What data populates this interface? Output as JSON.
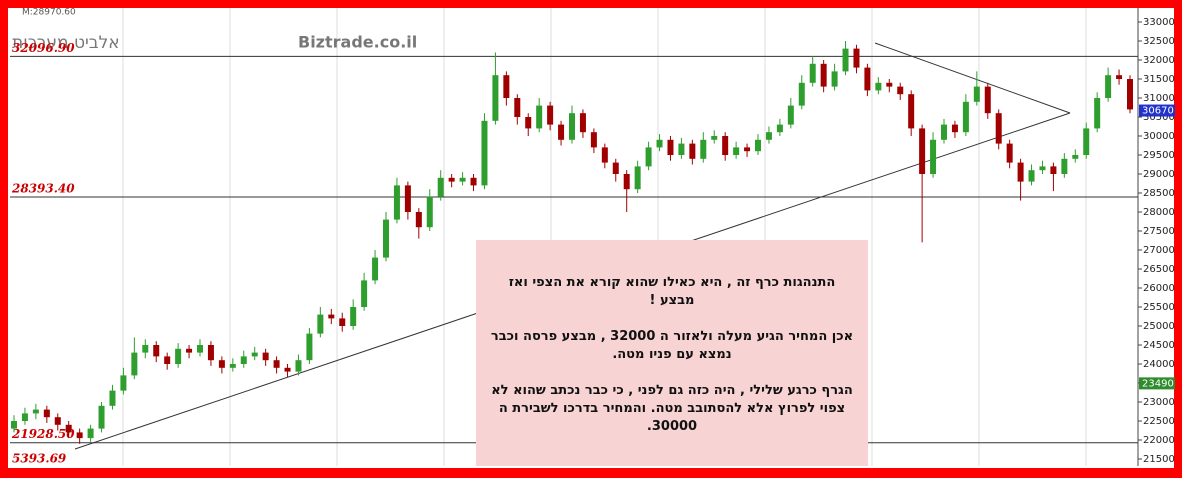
{
  "chart_data": {
    "type": "candlestick",
    "header_note": "M:28970.60",
    "title": "אלביט מערכות",
    "subtitle": "Biztrade.co.il",
    "up_color": "#2e9e2e",
    "down_color": "#a00000",
    "ylim": [
      21300,
      33300
    ],
    "yticks": [
      21500,
      22000,
      22500,
      23000,
      23500,
      24000,
      24500,
      25000,
      25500,
      26000,
      26500,
      27000,
      27500,
      28000,
      28500,
      29000,
      29500,
      30000,
      30500,
      31000,
      31500,
      32000,
      32500,
      33000
    ],
    "open": [
      22300,
      22500,
      22700,
      22800,
      22600,
      22400,
      22200,
      22050,
      22300,
      22900,
      23300,
      23700,
      24300,
      24500,
      24200,
      24000,
      24400,
      24300,
      24500,
      24100,
      23900,
      24000,
      24200,
      24300,
      24100,
      23900,
      23800,
      24100,
      24800,
      25300,
      25200,
      25000,
      25500,
      26200,
      26800,
      27800,
      28700,
      28000,
      27600,
      28400,
      28900,
      28800,
      28900,
      28700,
      30400,
      31600,
      31000,
      30500,
      30200,
      30800,
      30300,
      29900,
      30600,
      30100,
      29700,
      29300,
      29000,
      28600,
      29200,
      29700,
      29900,
      29500,
      29800,
      29400,
      29900,
      30000,
      29500,
      29700,
      29600,
      29900,
      30100,
      30300,
      30800,
      31400,
      31900,
      31300,
      31700,
      32300,
      31800,
      31200,
      31400,
      31300,
      31100,
      30200,
      29000,
      29900,
      30300,
      30100,
      30900,
      31300,
      30600,
      29800,
      29300,
      28800,
      29100,
      29200,
      29000,
      29400,
      29500,
      30200,
      31000,
      31600,
      31500
    ],
    "high": [
      22650,
      22850,
      22950,
      22900,
      22700,
      22500,
      22300,
      22400,
      23000,
      23450,
      23900,
      24700,
      24650,
      24600,
      24300,
      24550,
      24500,
      24650,
      24600,
      24200,
      24150,
      24350,
      24450,
      24400,
      24200,
      24000,
      24250,
      24950,
      25500,
      25450,
      25350,
      25700,
      26400,
      27000,
      28000,
      28900,
      28800,
      28100,
      28600,
      29100,
      29000,
      29050,
      29000,
      30600,
      32200,
      31700,
      31100,
      30600,
      31000,
      30900,
      30400,
      30800,
      30700,
      30200,
      29800,
      29400,
      29100,
      29350,
      29850,
      30050,
      30000,
      29950,
      29900,
      30100,
      30150,
      30100,
      29850,
      29800,
      30050,
      30250,
      30450,
      31000,
      31600,
      32100,
      32000,
      31900,
      32500,
      32400,
      31900,
      31550,
      31500,
      31400,
      31200,
      30300,
      30100,
      30450,
      30400,
      31100,
      31700,
      31400,
      30700,
      29900,
      29400,
      29250,
      29350,
      29300,
      29550,
      29650,
      30350,
      31150,
      31800,
      31750,
      31600
    ],
    "low": [
      22200,
      22400,
      22550,
      22450,
      22250,
      22050,
      21900,
      21950,
      22200,
      22800,
      23200,
      23600,
      24150,
      24050,
      23850,
      23900,
      24150,
      24200,
      23950,
      23750,
      23800,
      23900,
      24100,
      23950,
      23750,
      23650,
      23700,
      24000,
      24700,
      25050,
      24850,
      24900,
      25400,
      26100,
      26700,
      27700,
      27800,
      27300,
      27500,
      28300,
      28650,
      28700,
      28550,
      28600,
      30300,
      30800,
      30300,
      30000,
      30100,
      30150,
      29750,
      29800,
      29950,
      29550,
      29150,
      28800,
      28000,
      28500,
      29100,
      29600,
      29350,
      29400,
      29250,
      29300,
      29800,
      29350,
      29400,
      29450,
      29500,
      29800,
      30000,
      30200,
      30700,
      31300,
      31150,
      31200,
      31600,
      31650,
      31050,
      31100,
      31150,
      30950,
      30000,
      27200,
      28900,
      29800,
      29950,
      30000,
      30800,
      30450,
      29650,
      29150,
      28300,
      28700,
      29000,
      28550,
      28900,
      29300,
      29400,
      30100,
      30900,
      31350,
      30600
    ],
    "close": [
      22500,
      22700,
      22800,
      22600,
      22400,
      22200,
      22050,
      22300,
      22900,
      23300,
      23700,
      24300,
      24500,
      24200,
      24000,
      24400,
      24300,
      24500,
      24100,
      23900,
      24000,
      24200,
      24300,
      24100,
      23900,
      23800,
      24100,
      24800,
      25300,
      25200,
      25000,
      25500,
      26200,
      26800,
      27800,
      28700,
      28000,
      27600,
      28400,
      28900,
      28800,
      28900,
      28700,
      30400,
      31600,
      31000,
      30500,
      30200,
      30800,
      30300,
      29900,
      30600,
      30100,
      29700,
      29300,
      29000,
      28600,
      29200,
      29700,
      29900,
      29500,
      29800,
      29400,
      29900,
      30000,
      29500,
      29700,
      29600,
      29900,
      30100,
      30300,
      30800,
      31400,
      31900,
      31300,
      31700,
      32300,
      31800,
      31200,
      31400,
      31300,
      31100,
      30200,
      29000,
      29900,
      30300,
      30100,
      30900,
      31300,
      30600,
      29800,
      29300,
      28800,
      29100,
      29200,
      29000,
      29400,
      29500,
      30200,
      31000,
      31600,
      31500,
      30700
    ],
    "levels": [
      {
        "value": 32096.9,
        "label": "32096.90"
      },
      {
        "value": 28393.4,
        "label": "28393.40"
      },
      {
        "value": 21928.5,
        "label": "21928.50"
      }
    ],
    "bottom_note": "5393.69",
    "price_tags": [
      {
        "value": 30670,
        "color": "#2233cc"
      },
      {
        "value": 23490,
        "color": "#2e8b2e"
      }
    ],
    "annotation": [
      "התנהגות כרף זה , היא כאילו שהוא קורא את הצפי ואז מבצע !",
      "אכן המחיר הגיע מעלה ולאזור ה 32000 , מבצע פרסה וכבר נמצא עם פניו מטה.",
      "הגרף כרגע שלילי , היה כזה גם לפני , כי כבר נכתב שהוא לא צפוי לפרוץ אלא להסתובב מטה. והמחיר בדרכו לשבירת ה 30000."
    ]
  }
}
